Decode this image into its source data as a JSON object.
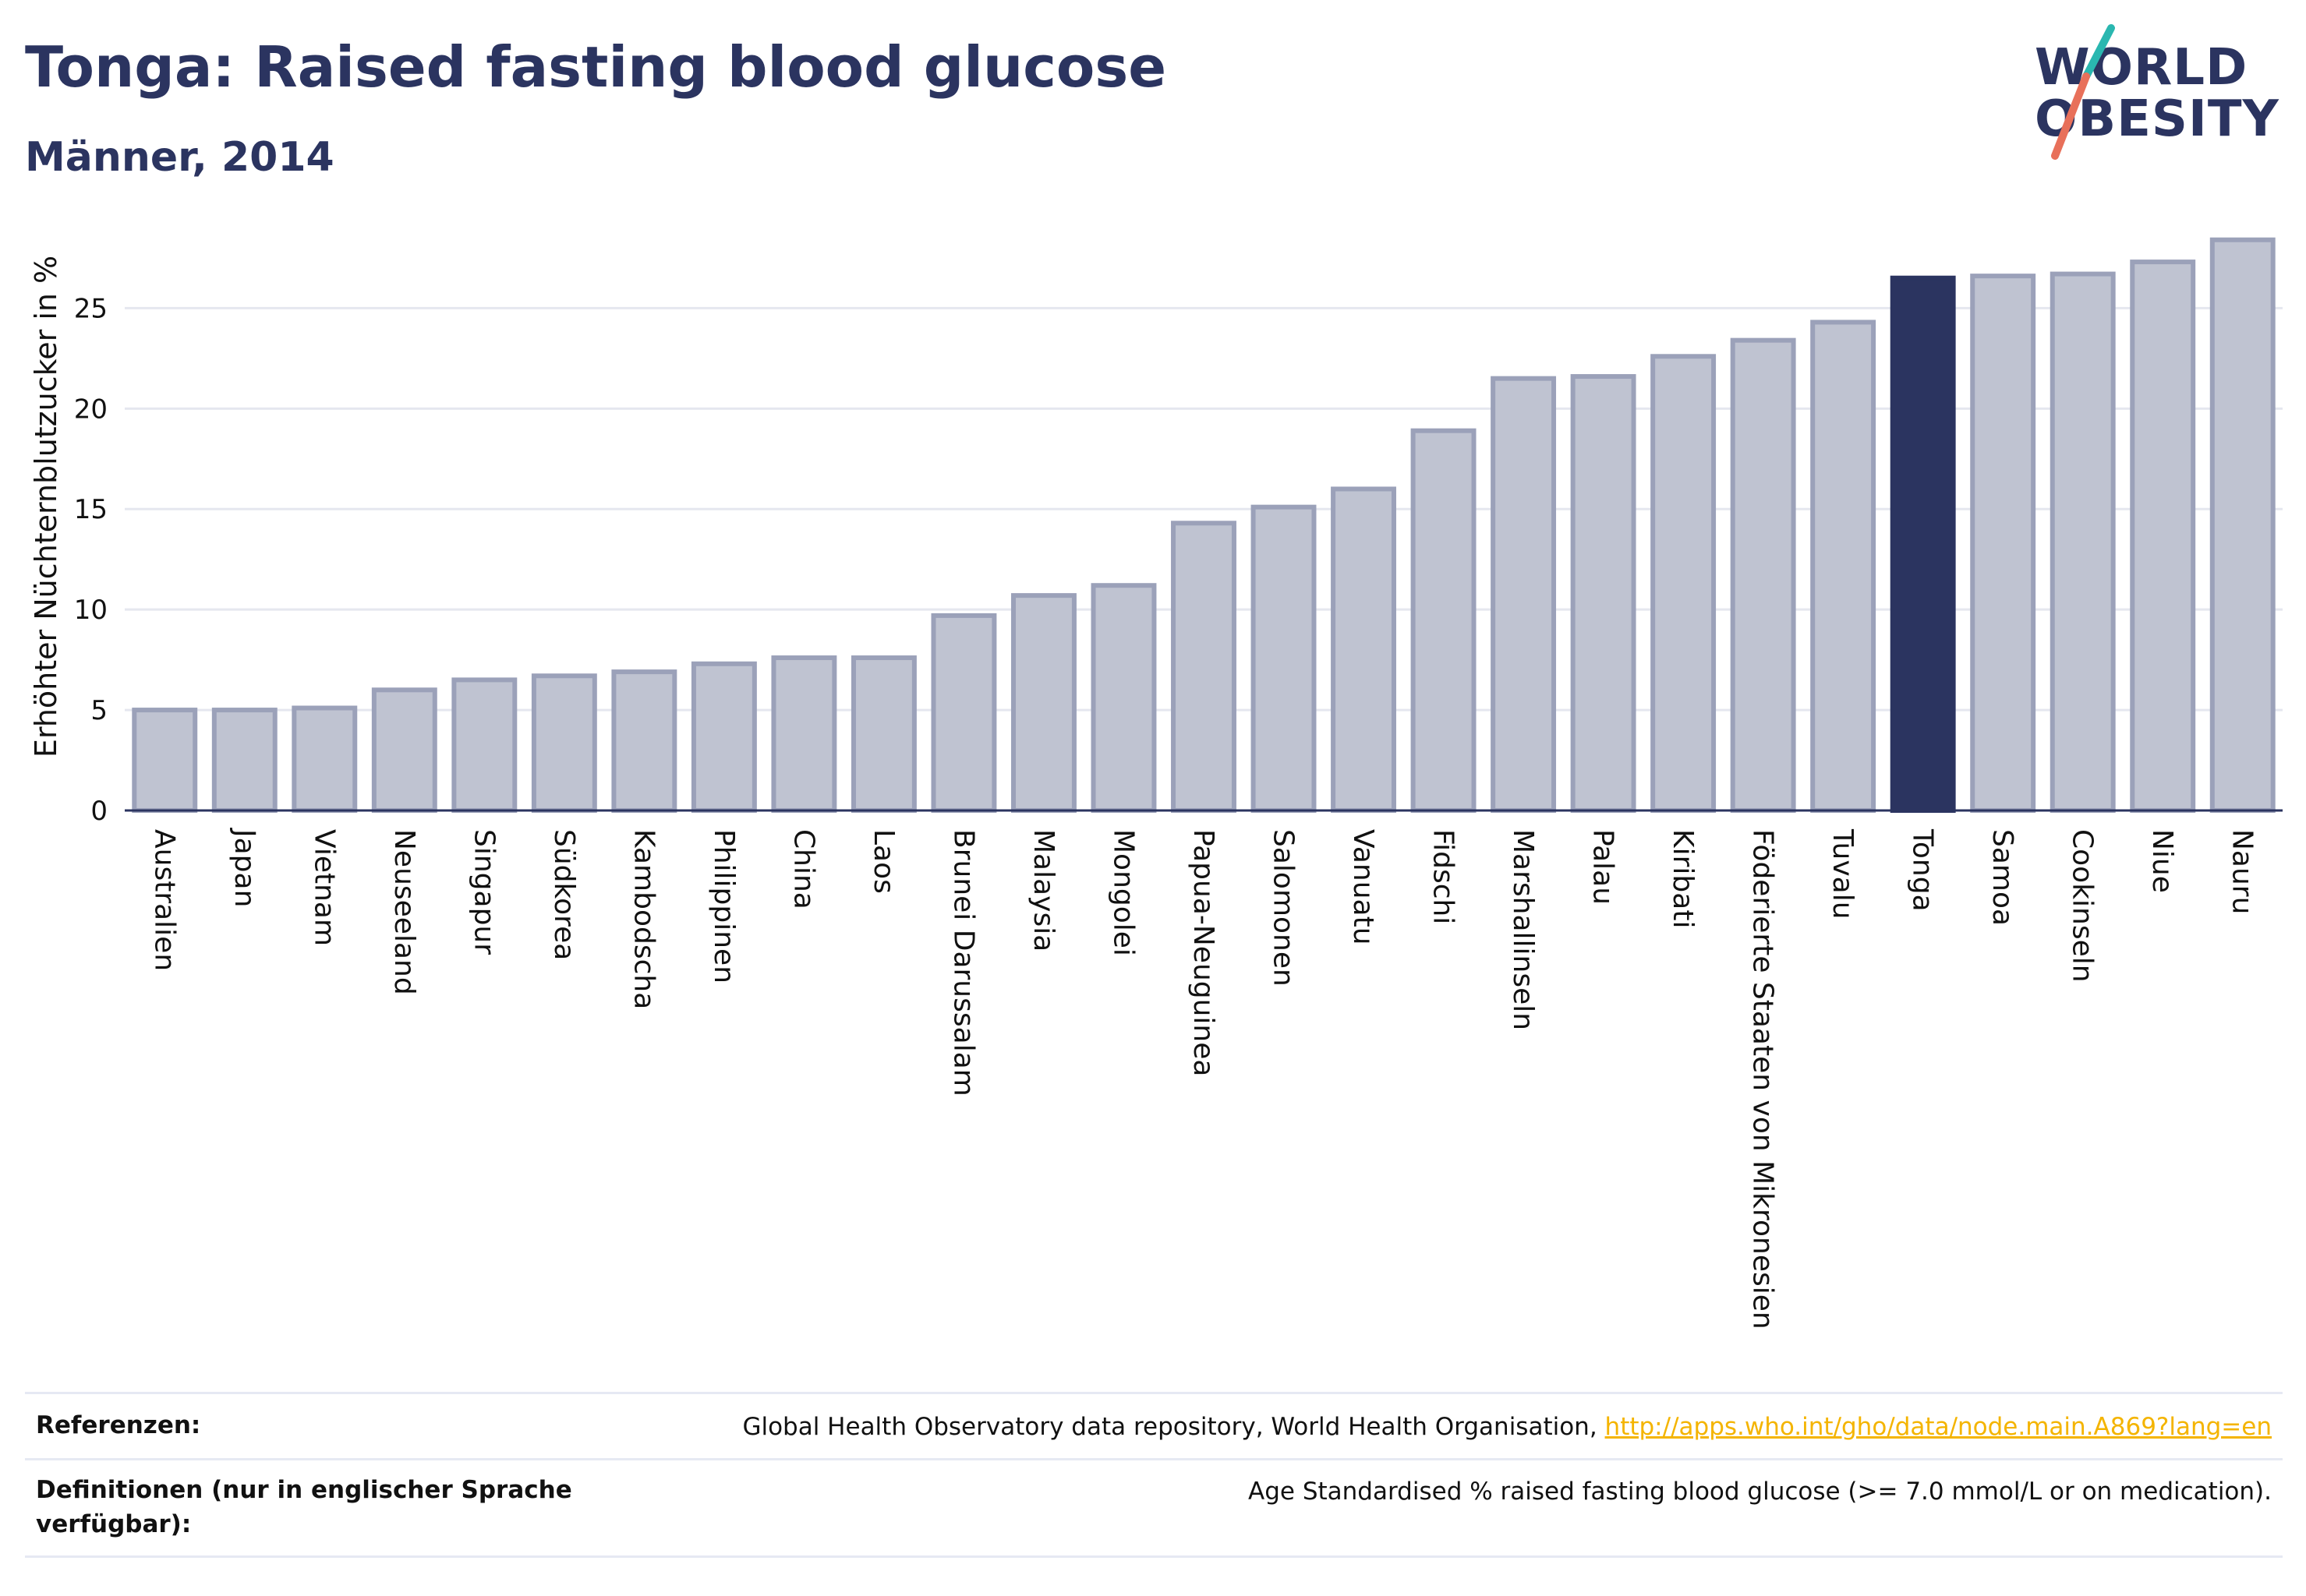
{
  "header": {
    "title": "Tonga: Raised fasting blood glucose",
    "subtitle": "Männer, 2014"
  },
  "logo": {
    "line1": "WORLD",
    "line2": "OBESITY",
    "colors": {
      "text": "#2b3460",
      "slash_top": "#2ab7b0",
      "slash_bottom": "#e8705a"
    }
  },
  "chart_data": {
    "type": "bar",
    "ylabel": "Erhöhter Nüchternblutzucker in %",
    "xlabel": "",
    "ylim": [
      0,
      28.7
    ],
    "yticks": [
      0,
      5,
      10,
      15,
      20,
      25
    ],
    "grid": true,
    "highlight": "Tonga",
    "categories": [
      "Australien",
      "Japan",
      "Vietnam",
      "Neuseeland",
      "Singapur",
      "Südkorea",
      "Kambodscha",
      "Philippinen",
      "China",
      "Laos",
      "Brunei Darussalam",
      "Malaysia",
      "Mongolei",
      "Papua-Neuguinea",
      "Salomonen",
      "Vanuatu",
      "Fidschi",
      "Marshallinseln",
      "Palau",
      "Kiribati",
      "Föderierte Staaten von Mikronesien",
      "Tuvalu",
      "Tonga",
      "Samoa",
      "Cookinseln",
      "Niue",
      "Nauru"
    ],
    "values": [
      5.0,
      5.0,
      5.1,
      6.0,
      6.5,
      6.7,
      6.9,
      7.3,
      7.6,
      7.6,
      9.7,
      10.7,
      11.2,
      14.3,
      15.1,
      16.0,
      18.9,
      21.5,
      21.6,
      22.6,
      23.4,
      24.3,
      26.5,
      26.6,
      26.7,
      27.3,
      28.4
    ],
    "colors": {
      "bar": "#bfc3d1",
      "bar_border": "#9ba1b9",
      "highlight": "#2b3460",
      "grid": "#e5e7ef",
      "axis": "#2b3460"
    }
  },
  "footer": {
    "references_label": "Referenzen:",
    "references_text": "Global Health Observatory data repository, World Health Organisation, ",
    "references_link": "http://apps.who.int/gho/data/node.main.A869?lang=en",
    "definitions_label": "Definitionen (nur in englischer Sprache verfügbar):",
    "definitions_text": "Age Standardised % raised fasting blood glucose (>= 7.0 mmol/L or on medication)."
  }
}
